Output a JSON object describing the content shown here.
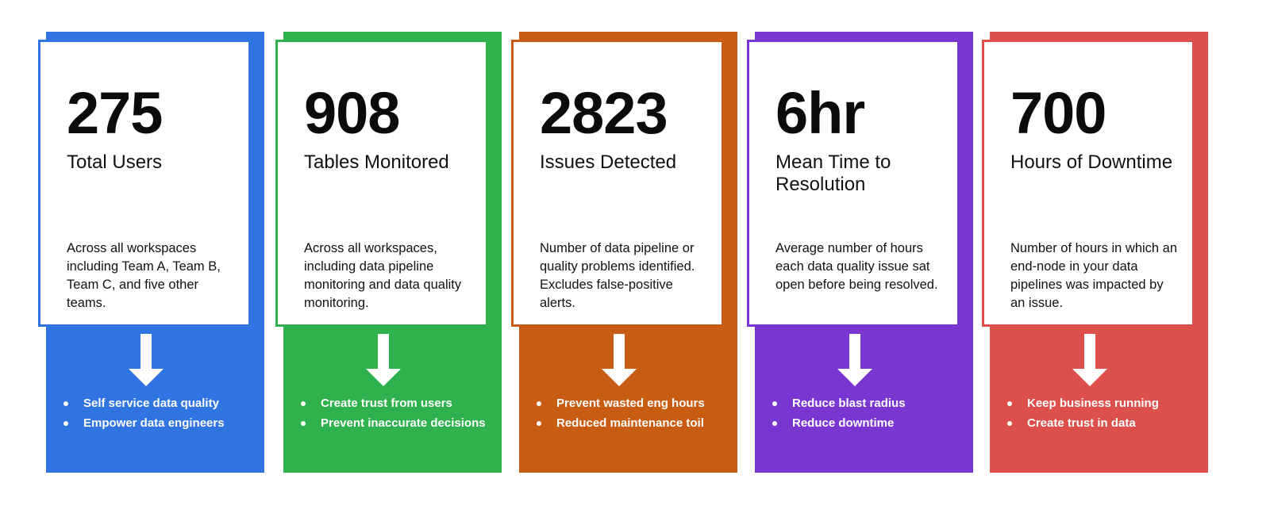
{
  "cards": [
    {
      "color": "#2f74e0",
      "metric": "275",
      "title": "Total Users",
      "description": "Across all workspaces including Team A, Team B, Team C, and five other teams.",
      "bullets": [
        "Self service data quality",
        "Empower data engineers"
      ]
    },
    {
      "color": "#2fb24d",
      "metric": "908",
      "title": "Tables Monitored",
      "description": "Across all workspaces, including data pipeline monitoring and data quality monitoring.",
      "bullets": [
        "Create trust from users",
        "Prevent inaccurate decisions"
      ]
    },
    {
      "color": "#c75c12",
      "metric": "2823",
      "title": "Issues Detected",
      "description": "Number of data pipeline or quality problems identified. Excludes false-positive alerts.",
      "bullets": [
        "Prevent wasted eng hours",
        "Reduced maintenance toil"
      ]
    },
    {
      "color": "#7a36d0",
      "metric": "6hr",
      "title": "Mean Time to Resolution",
      "description": "Average number of hours each data quality issue sat open before being resolved.",
      "bullets": [
        "Reduce blast radius",
        "Reduce downtime"
      ]
    },
    {
      "color": "#dc4f4b",
      "metric": "700",
      "title": "Hours of Downtime",
      "description": "Number of hours in which an end-node in your data pipelines was impacted by an issue.",
      "bullets": [
        "Keep business running",
        "Create trust in data"
      ]
    }
  ]
}
